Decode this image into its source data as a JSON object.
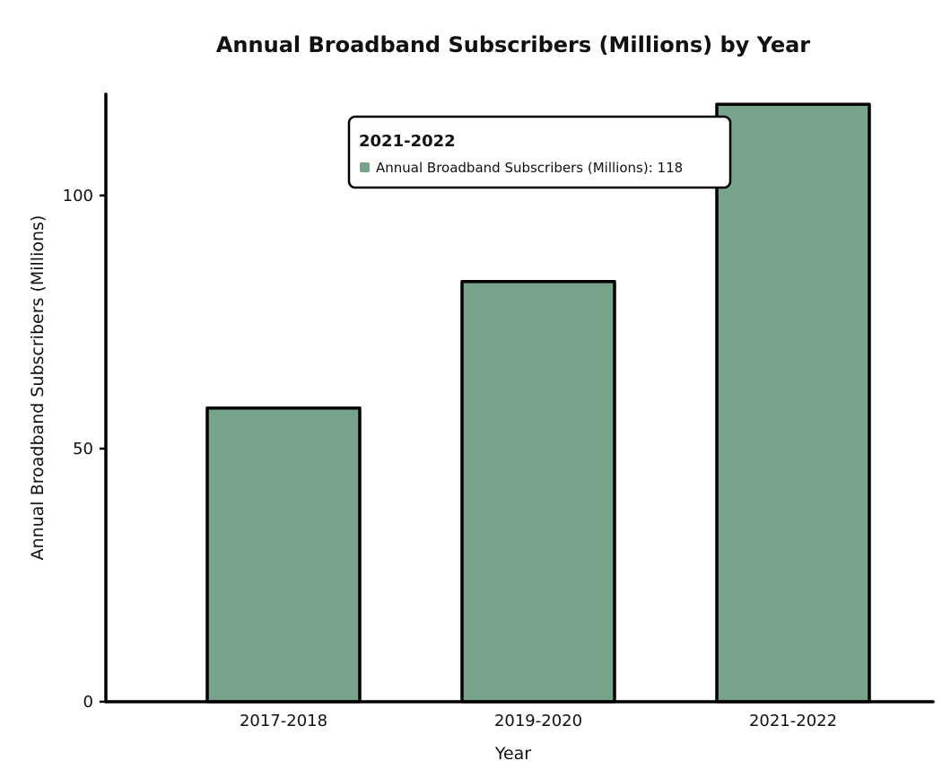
{
  "chart_data": {
    "type": "bar",
    "title": "Annual Broadband Subscribers (Millions) by Year",
    "xlabel": "Year",
    "ylabel": "Annual Broadband Subscribers (Millions)",
    "categories": [
      "2017-2018",
      "2019-2020",
      "2021-2022"
    ],
    "series": [
      {
        "name": "Annual Broadband Subscribers (Millions)",
        "values": [
          58,
          83,
          118
        ]
      }
    ],
    "ylim": [
      0,
      120
    ],
    "yticks": [
      0,
      50,
      100
    ],
    "grid": false,
    "legend": "none",
    "bar_color": "#76a38a",
    "outline_color": "#000000"
  },
  "tooltip": {
    "title": "2021-2022",
    "label": "Annual Broadband Subscribers (Millions): 118",
    "swatch_color": "#76a38a"
  }
}
